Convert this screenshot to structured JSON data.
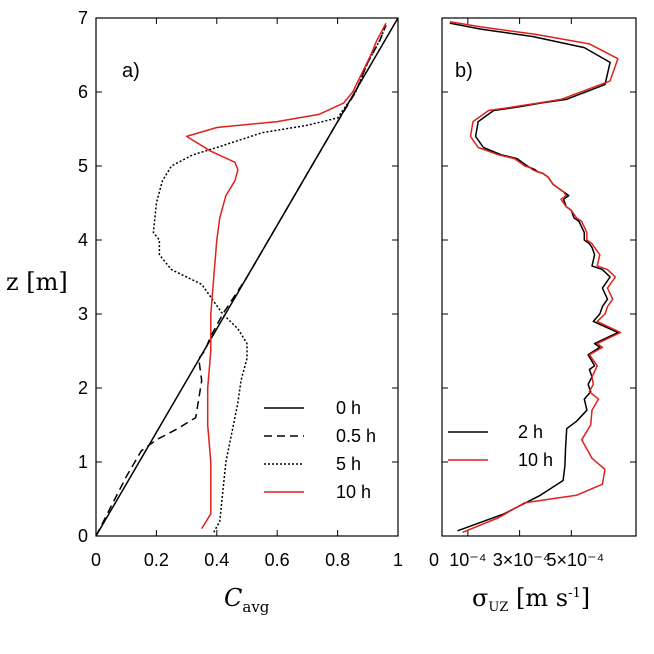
{
  "chart_data": [
    {
      "type": "line",
      "panel_label": "a)",
      "xlabel": "C",
      "xlabel_sub": "avg",
      "ylabel": "z [m]",
      "xlim": [
        0,
        1
      ],
      "ylim": [
        0,
        7
      ],
      "xticks": [
        0,
        0.2,
        0.4,
        0.6,
        0.8,
        1
      ],
      "xtick_labels": [
        "0",
        "0.2",
        "0.4",
        "0.6",
        "0.8",
        "1"
      ],
      "yticks": [
        0,
        1,
        2,
        3,
        4,
        5,
        6,
        7
      ],
      "ytick_labels": [
        "0",
        "1",
        "2",
        "3",
        "4",
        "5",
        "6",
        "7"
      ],
      "legend_position": "lower-right",
      "series": [
        {
          "name": "0 h",
          "color": "#000000",
          "dash": "solid",
          "x": [
            0,
            0.1,
            0.2,
            0.3,
            0.4,
            0.5,
            0.6,
            0.7,
            0.8,
            0.9,
            1
          ],
          "y": [
            0,
            0.7,
            1.4,
            2.1,
            2.8,
            3.5,
            4.2,
            4.9,
            5.6,
            6.3,
            7
          ]
        },
        {
          "name": "0.5 h",
          "color": "#000000",
          "dash": "dashed",
          "x": [
            0,
            0.05,
            0.1,
            0.15,
            0.2,
            0.27,
            0.33,
            0.35,
            0.34,
            0.36,
            0.38,
            0.42,
            0.5,
            0.6,
            0.7,
            0.8,
            0.86,
            0.9,
            0.94,
            0.96
          ],
          "y": [
            0,
            0.4,
            0.8,
            1.15,
            1.3,
            1.45,
            1.6,
            2.1,
            2.4,
            2.5,
            2.7,
            3.0,
            3.5,
            4.2,
            4.9,
            5.6,
            6.0,
            6.4,
            6.7,
            6.9
          ]
        },
        {
          "name": "5 h",
          "color": "#000000",
          "dash": "dotted",
          "x": [
            0.39,
            0.41,
            0.42,
            0.43,
            0.45,
            0.47,
            0.48,
            0.5,
            0.5,
            0.47,
            0.42,
            0.35,
            0.25,
            0.21,
            0.21,
            0.19,
            0.2,
            0.22,
            0.25,
            0.32,
            0.4,
            0.55,
            0.7,
            0.8,
            0.86,
            0.9,
            0.94,
            0.96
          ],
          "y": [
            0.05,
            0.2,
            0.6,
            1.0,
            1.4,
            1.8,
            2.1,
            2.4,
            2.6,
            2.8,
            3.0,
            3.4,
            3.6,
            3.8,
            4.0,
            4.1,
            4.5,
            4.8,
            5.0,
            5.15,
            5.25,
            5.45,
            5.55,
            5.65,
            6.0,
            6.4,
            6.7,
            6.9
          ]
        },
        {
          "name": "10 h",
          "color": "#e0201b",
          "dash": "solid",
          "x": [
            0.35,
            0.38,
            0.38,
            0.37,
            0.37,
            0.38,
            0.38,
            0.39,
            0.4,
            0.41,
            0.43,
            0.46,
            0.47,
            0.46,
            0.38,
            0.3,
            0.4,
            0.6,
            0.74,
            0.82,
            0.85,
            0.88,
            0.91,
            0.93,
            0.95,
            0.96
          ],
          "y": [
            0.1,
            0.3,
            1.0,
            1.5,
            2.0,
            2.5,
            3.0,
            3.5,
            4.0,
            4.3,
            4.6,
            4.8,
            4.95,
            5.05,
            5.2,
            5.4,
            5.52,
            5.6,
            5.7,
            5.85,
            6.0,
            6.25,
            6.5,
            6.7,
            6.85,
            6.93
          ]
        }
      ]
    },
    {
      "type": "line",
      "panel_label": "b)",
      "xlabel": "σUZ [m s-1]",
      "ylabel": "z [m]",
      "xlim": [
        0,
        0.00075
      ],
      "ylim": [
        0,
        7
      ],
      "xticks": [
        0,
        0.0001,
        0.0003,
        0.0005
      ],
      "xtick_labels": [
        "0",
        "10⁻⁴",
        "3×10⁻⁴",
        "5×10⁻⁴"
      ],
      "legend_position": "lower-left",
      "series": [
        {
          "name": "2 h",
          "color": "#000000",
          "x": [
            6e-05,
            0.00024,
            0.00038,
            0.000468,
            0.000475,
            0.000478,
            0.000482,
            0.00052,
            0.00056,
            0.00055,
            0.000575,
            0.000565,
            0.00058,
            0.00057,
            0.00059,
            0.000565,
            0.00061,
            0.00059,
            0.00068,
            0.000585,
            0.00061,
            0.00062,
            0.00064,
            0.00062,
            0.00065,
            0.00062,
            0.00058,
            0.00059,
            0.00058,
            0.00057,
            0.00055,
            0.00055,
            0.00053,
            0.00051,
            0.0005,
            0.00048,
            0.00047,
            0.00049,
            0.00047,
            0.00045,
            0.00043,
            0.00041,
            0.00039,
            0.00037,
            0.00036,
            0.00034,
            0.00033,
            0.00031,
            0.00029,
            0.00023,
            0.00016,
            0.00013,
            0.00014,
            0.0002,
            0.0003,
            0.00038,
            0.00048,
            0.00063,
            0.00065,
            0.00055,
            0.00035,
            0.00015,
            3e-05
          ],
          "y": [
            0.07,
            0.3,
            0.55,
            0.75,
            0.95,
            1.2,
            1.45,
            1.55,
            1.7,
            1.85,
            1.95,
            2.05,
            2.15,
            2.25,
            2.3,
            2.45,
            2.55,
            2.6,
            2.75,
            2.9,
            3.0,
            3.1,
            3.2,
            3.35,
            3.5,
            3.6,
            3.65,
            3.8,
            3.9,
            3.95,
            4.0,
            4.1,
            4.25,
            4.3,
            4.4,
            4.45,
            4.55,
            4.6,
            4.65,
            4.7,
            4.75,
            4.85,
            4.9,
            4.92,
            4.95,
            4.98,
            5.0,
            5.05,
            5.1,
            5.15,
            5.25,
            5.4,
            5.6,
            5.75,
            5.8,
            5.85,
            5.9,
            6.1,
            6.4,
            6.6,
            6.75,
            6.85,
            6.93
          ]
        },
        {
          "name": "10 h",
          "color": "#e0201b",
          "x": [
            8e-05,
            0.00022,
            0.00032,
            0.00052,
            0.00062,
            0.00063,
            0.00058,
            0.00054,
            0.000575,
            0.00058,
            0.000605,
            0.00057,
            0.000585,
            0.00058,
            0.0006,
            0.00057,
            0.00062,
            0.0006,
            0.00069,
            0.0006,
            0.00063,
            0.00064,
            0.00066,
            0.00064,
            0.00067,
            0.00064,
            0.0006,
            0.00061,
            0.00059,
            0.00058,
            0.00056,
            0.00056,
            0.00054,
            0.00052,
            0.0005,
            0.00048,
            0.00046,
            0.00048,
            0.00047,
            0.00045,
            0.00043,
            0.00041,
            0.00039,
            0.00037,
            0.00035,
            0.00034,
            0.00032,
            0.0003,
            0.00028,
            0.00022,
            0.00014,
            0.00011,
            0.00012,
            0.00018,
            0.00028,
            0.00037,
            0.00046,
            0.00065,
            0.00068,
            0.00057,
            0.00036,
            0.00015,
            3e-05
          ],
          "y": [
            0.05,
            0.25,
            0.45,
            0.55,
            0.7,
            0.9,
            1.05,
            1.3,
            1.5,
            1.7,
            1.85,
            1.95,
            2.05,
            2.15,
            2.3,
            2.45,
            2.55,
            2.6,
            2.75,
            2.9,
            3.0,
            3.1,
            3.2,
            3.35,
            3.5,
            3.6,
            3.65,
            3.8,
            3.9,
            3.95,
            4.0,
            4.1,
            4.25,
            4.3,
            4.4,
            4.45,
            4.55,
            4.6,
            4.65,
            4.7,
            4.75,
            4.85,
            4.9,
            4.92,
            4.95,
            4.98,
            5.0,
            5.05,
            5.1,
            5.15,
            5.25,
            5.4,
            5.6,
            5.75,
            5.8,
            5.85,
            5.9,
            6.15,
            6.45,
            6.65,
            6.78,
            6.88,
            6.95
          ]
        }
      ]
    }
  ]
}
